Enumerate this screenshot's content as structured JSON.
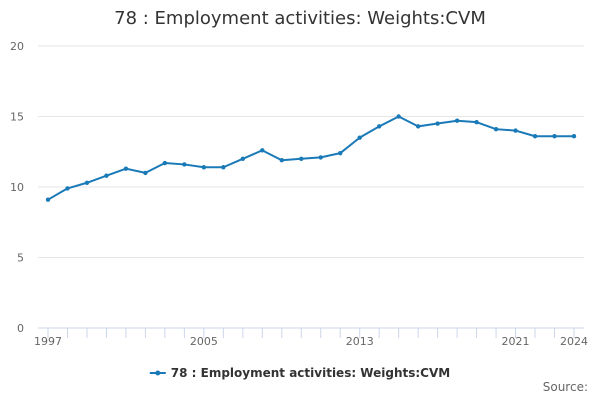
{
  "chart_data": {
    "type": "line",
    "title": "78 : Employment activities: Weights:CVM",
    "xlabel": "",
    "ylabel": "",
    "x": [
      1997,
      1998,
      1999,
      2000,
      2001,
      2002,
      2003,
      2004,
      2005,
      2006,
      2007,
      2008,
      2009,
      2010,
      2011,
      2012,
      2013,
      2014,
      2015,
      2016,
      2017,
      2018,
      2019,
      2020,
      2021,
      2022,
      2023,
      2024
    ],
    "x_tick_labels": [
      "1997",
      "2005",
      "2013",
      "2021",
      "2024"
    ],
    "xlim": [
      1997,
      2024
    ],
    "ylim": [
      0,
      20
    ],
    "y_ticks": [
      "0",
      "5",
      "10",
      "15",
      "20"
    ],
    "series": [
      {
        "name": "78 : Employment activities: Weights:CVM",
        "color": "#1a7ab8",
        "values": [
          9.1,
          9.9,
          10.3,
          10.8,
          11.3,
          11.0,
          11.7,
          11.6,
          11.4,
          11.4,
          12.0,
          12.6,
          11.9,
          12.0,
          12.1,
          12.4,
          13.5,
          14.3,
          15.0,
          14.3,
          14.5,
          14.7,
          14.6,
          14.1,
          14.0,
          13.6,
          13.6,
          13.6
        ]
      }
    ],
    "grid": true,
    "legend_position": "bottom"
  },
  "credits": "Source:"
}
